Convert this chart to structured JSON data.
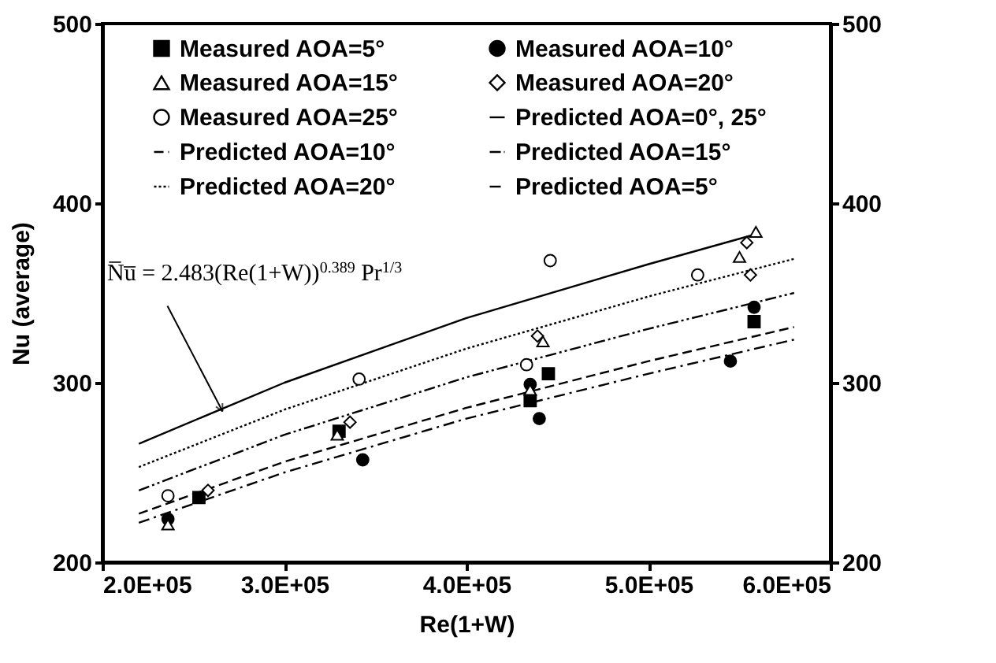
{
  "chart_data": {
    "type": "scatter",
    "xlabel": "Re(1+W)",
    "ylabel": "Nu (average)",
    "xlim": [
      200000,
      600000
    ],
    "xticks": [
      {
        "value": 200000,
        "label": "2.0E+05"
      },
      {
        "value": 300000,
        "label": "3.0E+05"
      },
      {
        "value": 400000,
        "label": "4.0E+05"
      },
      {
        "value": 500000,
        "label": "5.0E+05"
      },
      {
        "value": 600000,
        "label": "6.0E+05"
      }
    ],
    "ylim": [
      200,
      500
    ],
    "yticks": [
      200,
      300,
      400,
      500
    ],
    "y2lim": [
      200,
      500
    ],
    "y2ticks": [
      200,
      300,
      400,
      500
    ],
    "grid": false,
    "legend": "top",
    "annotations": [
      {
        "text": "N̅u̅ = 2.483(Re(1+W))$^{0.389}$ Pr$^{1/3}$",
        "x": 266000,
        "y": 284
      }
    ],
    "series": [
      {
        "name": "Measured AOA=5°",
        "marker": "square",
        "color": "#000000",
        "x": [
          253000,
          330000,
          435000,
          445000,
          558000
        ],
        "values": [
          236,
          273,
          290,
          305,
          334
        ]
      },
      {
        "name": "Measured AOA=10°",
        "marker": "circle",
        "color": "#000000",
        "x": [
          236000,
          343000,
          435000,
          440000,
          545000,
          558000
        ],
        "values": [
          224,
          257,
          299,
          280,
          312,
          342
        ]
      },
      {
        "name": "Measured AOA=15°",
        "marker": "triangle-open",
        "color": "#000000",
        "x": [
          236000,
          329000,
          435000,
          442000,
          550000,
          559000
        ],
        "values": [
          221,
          271,
          296,
          323,
          370,
          384
        ]
      },
      {
        "name": "Measured AOA=20°",
        "marker": "diamond-open",
        "color": "#000000",
        "x": [
          258000,
          336000,
          439000,
          556000,
          554000
        ],
        "values": [
          240,
          278,
          326,
          360,
          378
        ]
      },
      {
        "name": "Measured AOA=25°",
        "marker": "circle-open",
        "color": "#000000",
        "x": [
          236000,
          341000,
          433000,
          446000,
          527000
        ],
        "values": [
          237,
          302,
          310,
          368,
          360
        ]
      },
      {
        "name": "Predicted AOA=0°, 25°",
        "type": "line",
        "line_style": "solid",
        "color": "#000000",
        "x": [
          220000,
          300000,
          400000,
          500000,
          560000
        ],
        "values": [
          266,
          300,
          336,
          366,
          383
        ]
      },
      {
        "name": "Predicted AOA=10°",
        "type": "line",
        "line_style": "dashed",
        "color": "#000000",
        "x": [
          220000,
          300000,
          400000,
          500000,
          580000
        ],
        "values": [
          227,
          256,
          286,
          312,
          331
        ]
      },
      {
        "name": "Predicted AOA=15°",
        "type": "line",
        "line_style": "dashdotdot",
        "color": "#000000",
        "x": [
          220000,
          300000,
          400000,
          500000,
          580000
        ],
        "values": [
          240,
          271,
          303,
          330,
          350
        ]
      },
      {
        "name": "Predicted AOA=20°",
        "type": "line",
        "line_style": "dotted",
        "color": "#000000",
        "x": [
          220000,
          300000,
          400000,
          500000,
          580000
        ],
        "values": [
          253,
          285,
          319,
          348,
          369
        ]
      },
      {
        "name": "Predicted AOA=5°",
        "type": "line",
        "line_style": "dashdot",
        "color": "#000000",
        "x": [
          220000,
          300000,
          400000,
          500000,
          580000
        ],
        "values": [
          222,
          250,
          280,
          305,
          324
        ]
      }
    ]
  }
}
